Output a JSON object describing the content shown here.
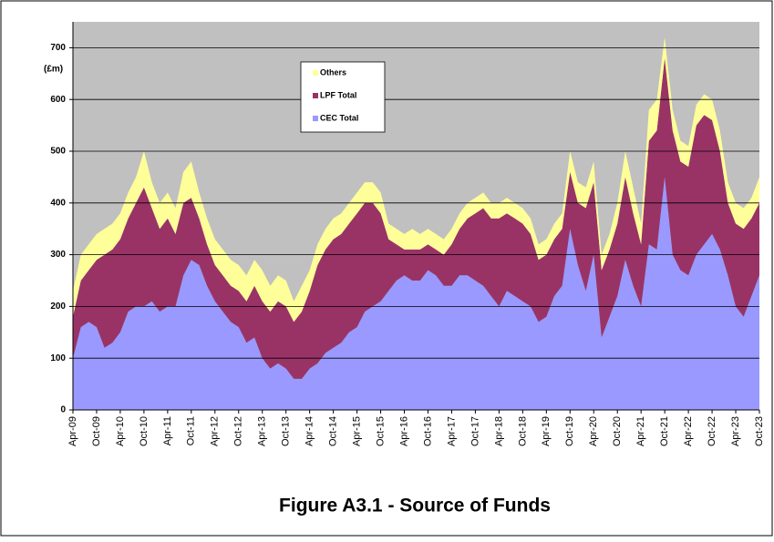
{
  "chart_data": {
    "type": "stacked-area",
    "title": "Figure A3.1 - Source of Funds",
    "y_label": "(£m)",
    "categories": [
      "Apr-09",
      null,
      null,
      "Oct-09",
      null,
      null,
      "Apr-10",
      null,
      null,
      "Oct-10",
      null,
      null,
      "Apr-11",
      null,
      null,
      "Oct-11",
      null,
      null,
      "Apr-12",
      null,
      null,
      "Oct-12",
      null,
      null,
      "Apr-13",
      null,
      null,
      "Oct-13",
      null,
      null,
      "Apr-14",
      null,
      null,
      "Oct-14",
      null,
      null,
      "Apr-15",
      null,
      null,
      "Oct-15",
      null,
      null,
      "Apr-16",
      null,
      null,
      "Oct-16",
      null,
      null,
      "Apr-17",
      null,
      null,
      "Oct-17",
      null,
      null,
      "Apr-18",
      null,
      null,
      "Oct-18",
      null,
      null,
      "Apr-19",
      null,
      null,
      "Oct-19",
      null,
      null,
      "Apr-20",
      null,
      null,
      "Oct-20",
      null,
      null,
      "Apr-21",
      null,
      null,
      "Oct-21",
      null,
      null,
      "Apr-22",
      null,
      null,
      "Oct-22",
      null,
      null,
      "Apr-23",
      null,
      null,
      "Oct-23"
    ],
    "series": [
      {
        "name": "CEC Total",
        "color": "#9999ff",
        "values": [
          100,
          160,
          170,
          160,
          120,
          130,
          150,
          190,
          200,
          200,
          210,
          190,
          200,
          200,
          260,
          290,
          280,
          240,
          210,
          190,
          170,
          160,
          130,
          140,
          100,
          80,
          90,
          80,
          60,
          60,
          80,
          90,
          110,
          120,
          130,
          150,
          160,
          190,
          200,
          210,
          230,
          250,
          260,
          250,
          250,
          270,
          260,
          240,
          240,
          260,
          260,
          250,
          240,
          220,
          200,
          230,
          220,
          210,
          200,
          170,
          180,
          220,
          240,
          350,
          280,
          230,
          300,
          140,
          180,
          220,
          290,
          240,
          200,
          320,
          310,
          450,
          300,
          270,
          260,
          300,
          320,
          340,
          310,
          260,
          200,
          180,
          220,
          260
        ]
      },
      {
        "name": "LPF Total",
        "color": "#993366",
        "values": [
          80,
          90,
          100,
          130,
          180,
          180,
          180,
          180,
          200,
          230,
          180,
          160,
          170,
          140,
          140,
          120,
          90,
          80,
          70,
          70,
          70,
          70,
          80,
          100,
          110,
          110,
          120,
          120,
          110,
          130,
          150,
          190,
          200,
          210,
          210,
          210,
          220,
          210,
          200,
          170,
          100,
          70,
          50,
          60,
          60,
          50,
          50,
          60,
          80,
          90,
          110,
          130,
          150,
          150,
          170,
          150,
          150,
          150,
          140,
          120,
          120,
          110,
          110,
          110,
          120,
          160,
          140,
          130,
          130,
          140,
          160,
          140,
          120,
          200,
          230,
          230,
          240,
          210,
          210,
          250,
          250,
          220,
          190,
          140,
          160,
          170,
          150,
          140
        ]
      },
      {
        "name": "Others",
        "color": "#ffff99",
        "values": [
          50,
          50,
          50,
          50,
          50,
          50,
          50,
          50,
          50,
          70,
          50,
          50,
          50,
          50,
          60,
          70,
          50,
          50,
          50,
          50,
          50,
          50,
          50,
          50,
          60,
          50,
          50,
          50,
          40,
          50,
          40,
          40,
          40,
          40,
          40,
          40,
          40,
          40,
          40,
          40,
          30,
          30,
          30,
          40,
          30,
          30,
          30,
          30,
          30,
          30,
          30,
          30,
          30,
          30,
          30,
          30,
          30,
          30,
          30,
          30,
          30,
          30,
          30,
          40,
          40,
          40,
          40,
          30,
          30,
          40,
          50,
          50,
          40,
          60,
          60,
          40,
          40,
          40,
          40,
          40,
          40,
          40,
          40,
          40,
          40,
          40,
          40,
          50
        ]
      }
    ],
    "ylim": [
      0,
      750
    ],
    "yticks": [
      0,
      100,
      200,
      300,
      400,
      500,
      600,
      700
    ],
    "grid": true
  }
}
